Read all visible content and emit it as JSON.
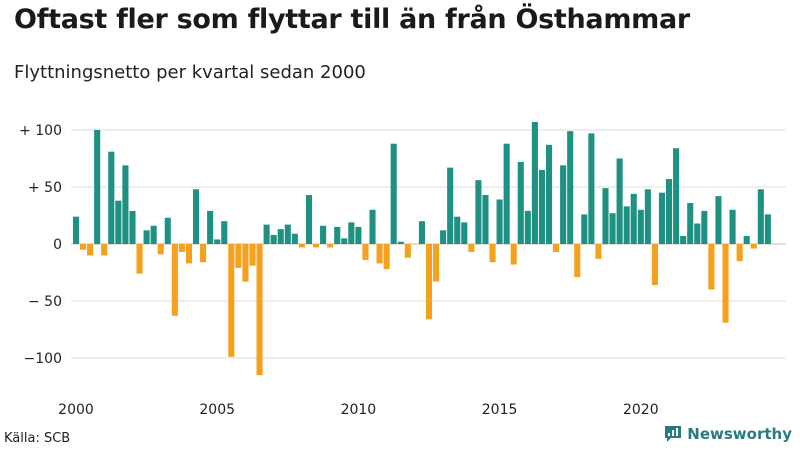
{
  "header": {
    "title": "Oftast fler som flyttar till än från Östhammar",
    "subtitle": "Flyttningsnetto per kvartal sedan 2000"
  },
  "footer": {
    "source": "Källa: SCB",
    "brand": "Newsworthy",
    "brand_icon": "newsworthy-logo-icon"
  },
  "colors": {
    "positive": "#1f9183",
    "negative": "#f5a11d",
    "grid": "#dcdcdc",
    "axis": "#222222",
    "brand": "#2a7a80"
  },
  "chart_data": {
    "type": "bar",
    "title": "Oftast fler som flyttar till än från Östhammar",
    "subtitle": "Flyttningsnetto per kvartal sedan 2000",
    "x_start": "2000-Q1",
    "x_interval": "quarter",
    "x_ticks": [
      {
        "label": "2000",
        "index": 0
      },
      {
        "label": "2005",
        "index": 20
      },
      {
        "label": "2010",
        "index": 40
      },
      {
        "label": "2015",
        "index": 60
      },
      {
        "label": "2020",
        "index": 80
      }
    ],
    "y_ticks": [
      {
        "value": 100,
        "label": "+ 100"
      },
      {
        "value": 50,
        "label": "+  50"
      },
      {
        "value": 0,
        "label": "0"
      },
      {
        "value": -50,
        "label": "− 50"
      },
      {
        "value": -100,
        "label": "−100"
      }
    ],
    "ylim": [
      -118,
      108
    ],
    "grid": true,
    "legend": "none",
    "values": [
      24,
      -5,
      -10,
      100,
      -10,
      81,
      38,
      69,
      29,
      -26,
      12,
      16,
      -9,
      23,
      -63,
      -7,
      -17,
      48,
      -16,
      29,
      4,
      20,
      -99,
      -21,
      -33,
      -19,
      -115,
      17,
      8,
      13,
      17,
      9,
      -3,
      43,
      -3,
      16,
      -3,
      15,
      5,
      19,
      15,
      -14,
      30,
      -17,
      -22,
      88,
      2,
      -12,
      0,
      20,
      -66,
      -33,
      12,
      67,
      24,
      19,
      -7,
      56,
      43,
      -16,
      39,
      88,
      -18,
      72,
      29,
      107,
      65,
      87,
      -7,
      69,
      99,
      -29,
      26,
      97,
      -13,
      49,
      27,
      75,
      33,
      44,
      30,
      48,
      -36,
      45,
      57,
      84,
      7,
      36,
      18,
      29,
      -40,
      42,
      -69,
      30,
      -15,
      7,
      -4,
      48,
      26
    ]
  }
}
